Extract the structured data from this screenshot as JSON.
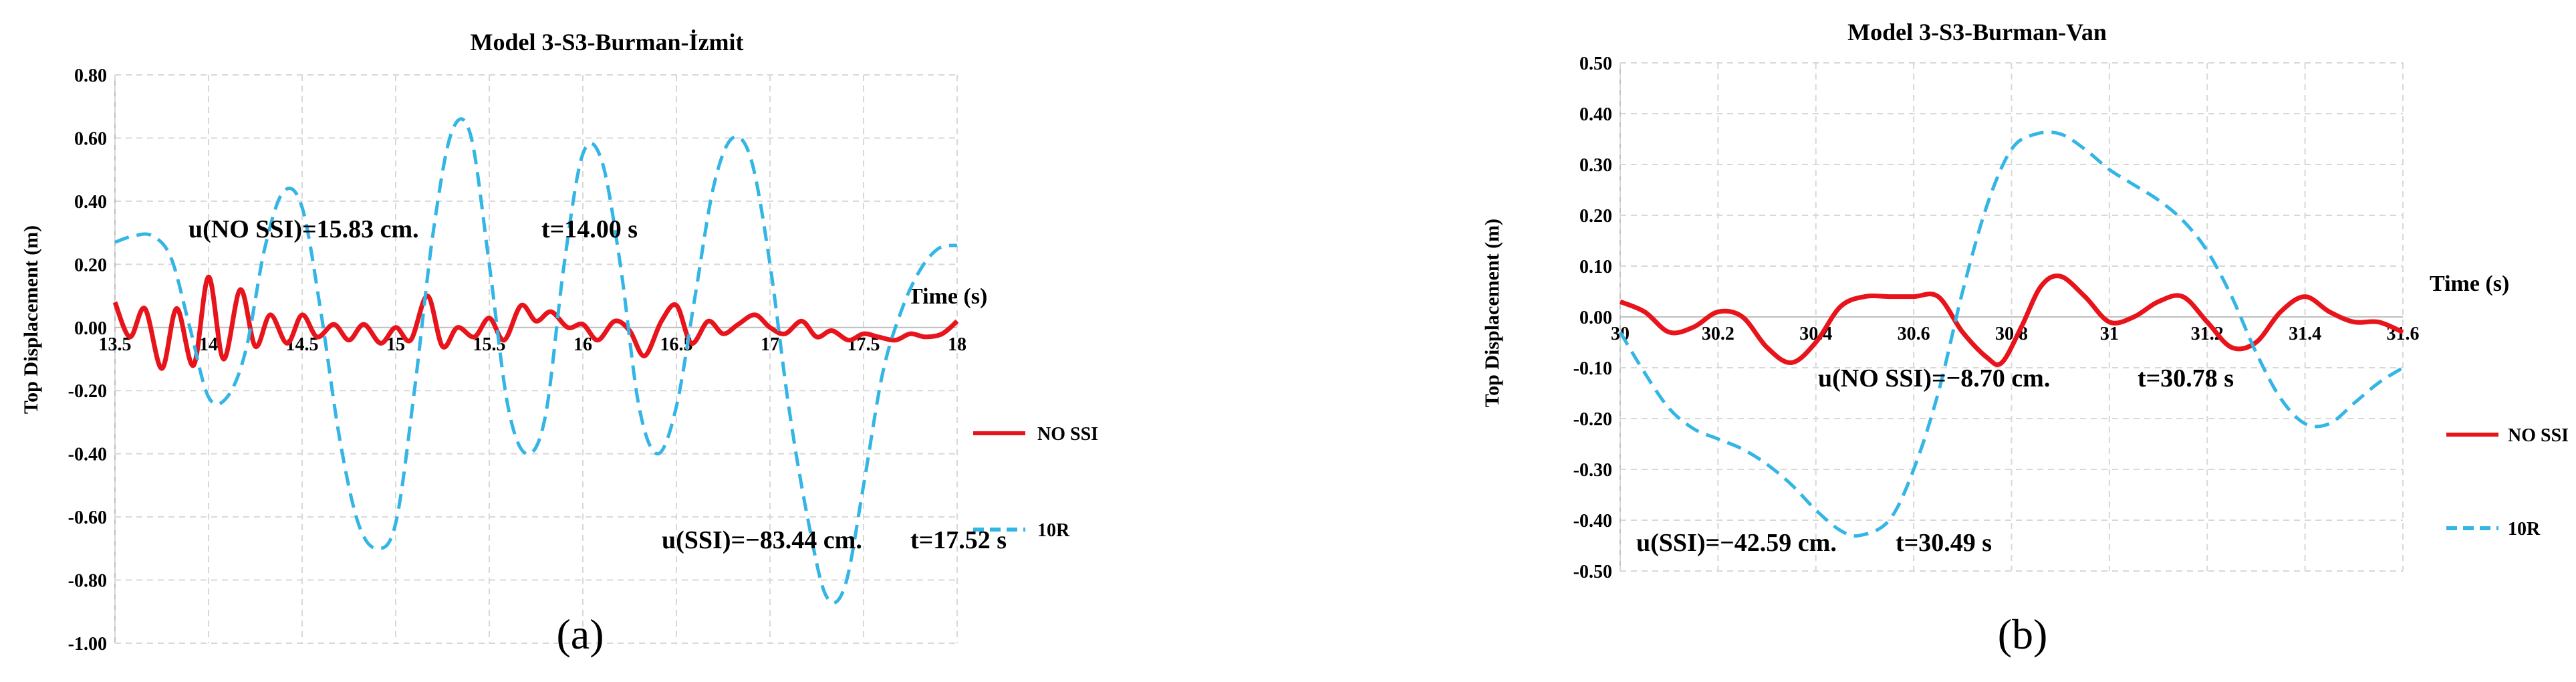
{
  "chart_data": [
    {
      "type": "line",
      "title": "Model 3-S3-Burman-İzmit",
      "xlabel": "Time (s)",
      "ylabel": "Top Displacement (m)",
      "xlim": [
        13.5,
        18
      ],
      "ylim": [
        -1.0,
        0.8
      ],
      "x_ticks": [
        "13.5",
        "14",
        "14.5",
        "15",
        "15.5",
        "16",
        "16.5",
        "17",
        "17.5",
        "18"
      ],
      "x_tick_values": [
        13.5,
        14,
        14.5,
        15,
        15.5,
        16,
        16.5,
        17,
        17.5,
        18
      ],
      "y_ticks": [
        "0.80",
        "0.60",
        "0.40",
        "0.20",
        "0.00",
        "-0.20",
        "-0.40",
        "-0.60",
        "-0.80",
        "-1.00"
      ],
      "y_tick_values": [
        0.8,
        0.6,
        0.4,
        0.2,
        0.0,
        -0.2,
        -0.4,
        -0.6,
        -0.8,
        -1.0
      ],
      "grid": true,
      "legend_position": "right",
      "series": [
        {
          "name": "NO SSI",
          "color": "#e8141b",
          "style": "solid",
          "x": [
            13.5,
            13.58,
            13.66,
            13.75,
            13.83,
            13.92,
            14.0,
            14.08,
            14.17,
            14.25,
            14.33,
            14.42,
            14.5,
            14.58,
            14.67,
            14.75,
            14.83,
            14.92,
            15.0,
            15.08,
            15.17,
            15.25,
            15.33,
            15.42,
            15.5,
            15.58,
            15.67,
            15.75,
            15.83,
            15.92,
            16.0,
            16.08,
            16.17,
            16.25,
            16.33,
            16.42,
            16.5,
            16.58,
            16.67,
            16.75,
            16.83,
            16.92,
            17.0,
            17.08,
            17.17,
            17.25,
            17.33,
            17.42,
            17.5,
            17.58,
            17.67,
            17.75,
            17.83,
            17.92,
            18.0
          ],
          "y": [
            0.08,
            -0.03,
            0.06,
            -0.13,
            0.06,
            -0.12,
            0.16,
            -0.1,
            0.12,
            -0.06,
            0.04,
            -0.05,
            0.04,
            -0.03,
            0.01,
            -0.04,
            0.01,
            -0.05,
            0.0,
            -0.04,
            0.1,
            -0.06,
            0.0,
            -0.03,
            0.03,
            -0.04,
            0.07,
            0.02,
            0.05,
            0.0,
            0.01,
            -0.04,
            0.02,
            -0.01,
            -0.09,
            0.02,
            0.07,
            -0.05,
            0.02,
            -0.02,
            0.01,
            0.04,
            0.0,
            -0.02,
            0.02,
            -0.03,
            -0.01,
            -0.04,
            -0.02,
            -0.03,
            -0.04,
            -0.02,
            -0.03,
            -0.02,
            0.02
          ]
        },
        {
          "name": "10R",
          "color": "#33b5e5",
          "style": "dashed",
          "x": [
            13.5,
            13.6,
            13.7,
            13.8,
            13.9,
            14.0,
            14.1,
            14.2,
            14.3,
            14.4,
            14.5,
            14.6,
            14.7,
            14.8,
            14.9,
            15.0,
            15.1,
            15.2,
            15.3,
            15.4,
            15.5,
            15.6,
            15.7,
            15.8,
            15.9,
            16.0,
            16.1,
            16.2,
            16.3,
            16.4,
            16.5,
            16.6,
            16.7,
            16.8,
            16.9,
            17.0,
            17.1,
            17.2,
            17.3,
            17.4,
            17.5,
            17.6,
            17.7,
            17.8,
            17.9,
            18.0
          ],
          "y": [
            0.27,
            0.29,
            0.29,
            0.22,
            0.0,
            -0.22,
            -0.22,
            -0.07,
            0.25,
            0.43,
            0.38,
            0.05,
            -0.35,
            -0.62,
            -0.7,
            -0.62,
            -0.2,
            0.3,
            0.62,
            0.61,
            0.2,
            -0.25,
            -0.4,
            -0.28,
            0.2,
            0.55,
            0.53,
            0.2,
            -0.25,
            -0.4,
            -0.25,
            0.1,
            0.45,
            0.6,
            0.53,
            0.2,
            -0.25,
            -0.6,
            -0.85,
            -0.82,
            -0.5,
            -0.15,
            0.05,
            0.18,
            0.25,
            0.26
          ]
        }
      ],
      "annotations": [
        {
          "text": "u(NO SSI)=15.83 cm.",
          "x": 14.0,
          "y": 0.16
        },
        {
          "text": "t=14.00 s",
          "x": 14.0,
          "y": 0.16
        },
        {
          "text": "u(SSI)=−83.44 cm.",
          "x": 17.52,
          "y": -0.83
        },
        {
          "text": "t=17.52 s",
          "x": 17.52,
          "y": -0.83
        }
      ],
      "caption": "(a)"
    },
    {
      "type": "line",
      "title": "Model 3-S3-Burman-Van",
      "xlabel": "Time (s)",
      "ylabel": "Top Displacement (m)",
      "xlim": [
        30,
        31.6
      ],
      "ylim": [
        -0.5,
        0.5
      ],
      "x_ticks": [
        "30",
        "30.2",
        "30.4",
        "30.6",
        "30.8",
        "31",
        "31.2",
        "31.4",
        "31.6"
      ],
      "x_tick_values": [
        30,
        30.2,
        30.4,
        30.6,
        30.8,
        31,
        31.2,
        31.4,
        31.6
      ],
      "y_ticks": [
        "0.50",
        "0.40",
        "0.30",
        "0.20",
        "0.10",
        "0.00",
        "-0.10",
        "-0.20",
        "-0.30",
        "-0.40",
        "-0.50"
      ],
      "y_tick_values": [
        0.5,
        0.4,
        0.3,
        0.2,
        0.1,
        0.0,
        -0.1,
        -0.2,
        -0.3,
        -0.4,
        -0.5
      ],
      "grid": true,
      "legend_position": "right",
      "series": [
        {
          "name": "NO SSI",
          "color": "#e8141b",
          "style": "solid",
          "x": [
            30.0,
            30.05,
            30.1,
            30.15,
            30.2,
            30.25,
            30.3,
            30.35,
            30.4,
            30.45,
            30.5,
            30.55,
            30.6,
            30.65,
            30.7,
            30.75,
            30.78,
            30.82,
            30.86,
            30.9,
            30.95,
            31.0,
            31.05,
            31.1,
            31.15,
            31.2,
            31.25,
            31.3,
            31.35,
            31.4,
            31.45,
            31.5,
            31.55,
            31.6
          ],
          "y": [
            0.03,
            0.01,
            -0.03,
            -0.02,
            0.01,
            0.0,
            -0.06,
            -0.09,
            -0.05,
            0.02,
            0.04,
            0.04,
            0.04,
            0.04,
            -0.03,
            -0.08,
            -0.09,
            -0.02,
            0.06,
            0.08,
            0.04,
            -0.01,
            0.0,
            0.03,
            0.04,
            -0.01,
            -0.06,
            -0.05,
            0.01,
            0.04,
            0.01,
            -0.01,
            -0.01,
            -0.03
          ]
        },
        {
          "name": "10R",
          "color": "#33b5e5",
          "style": "dashed",
          "x": [
            30.0,
            30.05,
            30.1,
            30.15,
            30.2,
            30.25,
            30.3,
            30.35,
            30.4,
            30.45,
            30.49,
            30.55,
            30.6,
            30.65,
            30.7,
            30.75,
            30.8,
            30.85,
            30.9,
            30.95,
            31.0,
            31.05,
            31.1,
            31.15,
            31.2,
            31.25,
            31.3,
            31.35,
            31.4,
            31.45,
            31.5,
            31.55,
            31.6
          ],
          "y": [
            -0.03,
            -0.11,
            -0.18,
            -0.22,
            -0.24,
            -0.26,
            -0.29,
            -0.33,
            -0.38,
            -0.42,
            -0.43,
            -0.4,
            -0.3,
            -0.15,
            0.05,
            0.22,
            0.33,
            0.36,
            0.36,
            0.33,
            0.29,
            0.26,
            0.23,
            0.19,
            0.13,
            0.04,
            -0.07,
            -0.16,
            -0.21,
            -0.21,
            -0.17,
            -0.13,
            -0.1
          ]
        }
      ],
      "annotations": [
        {
          "text": "u(NO SSI)=−8.70 cm.",
          "x": 30.78,
          "y": -0.09
        },
        {
          "text": "t=30.78 s",
          "x": 30.78,
          "y": -0.09
        },
        {
          "text": "u(SSI)=−42.59 cm.",
          "x": 30.49,
          "y": -0.43
        },
        {
          "text": "t=30.49 s",
          "x": 30.49,
          "y": -0.43
        }
      ],
      "caption": "(b)"
    }
  ]
}
